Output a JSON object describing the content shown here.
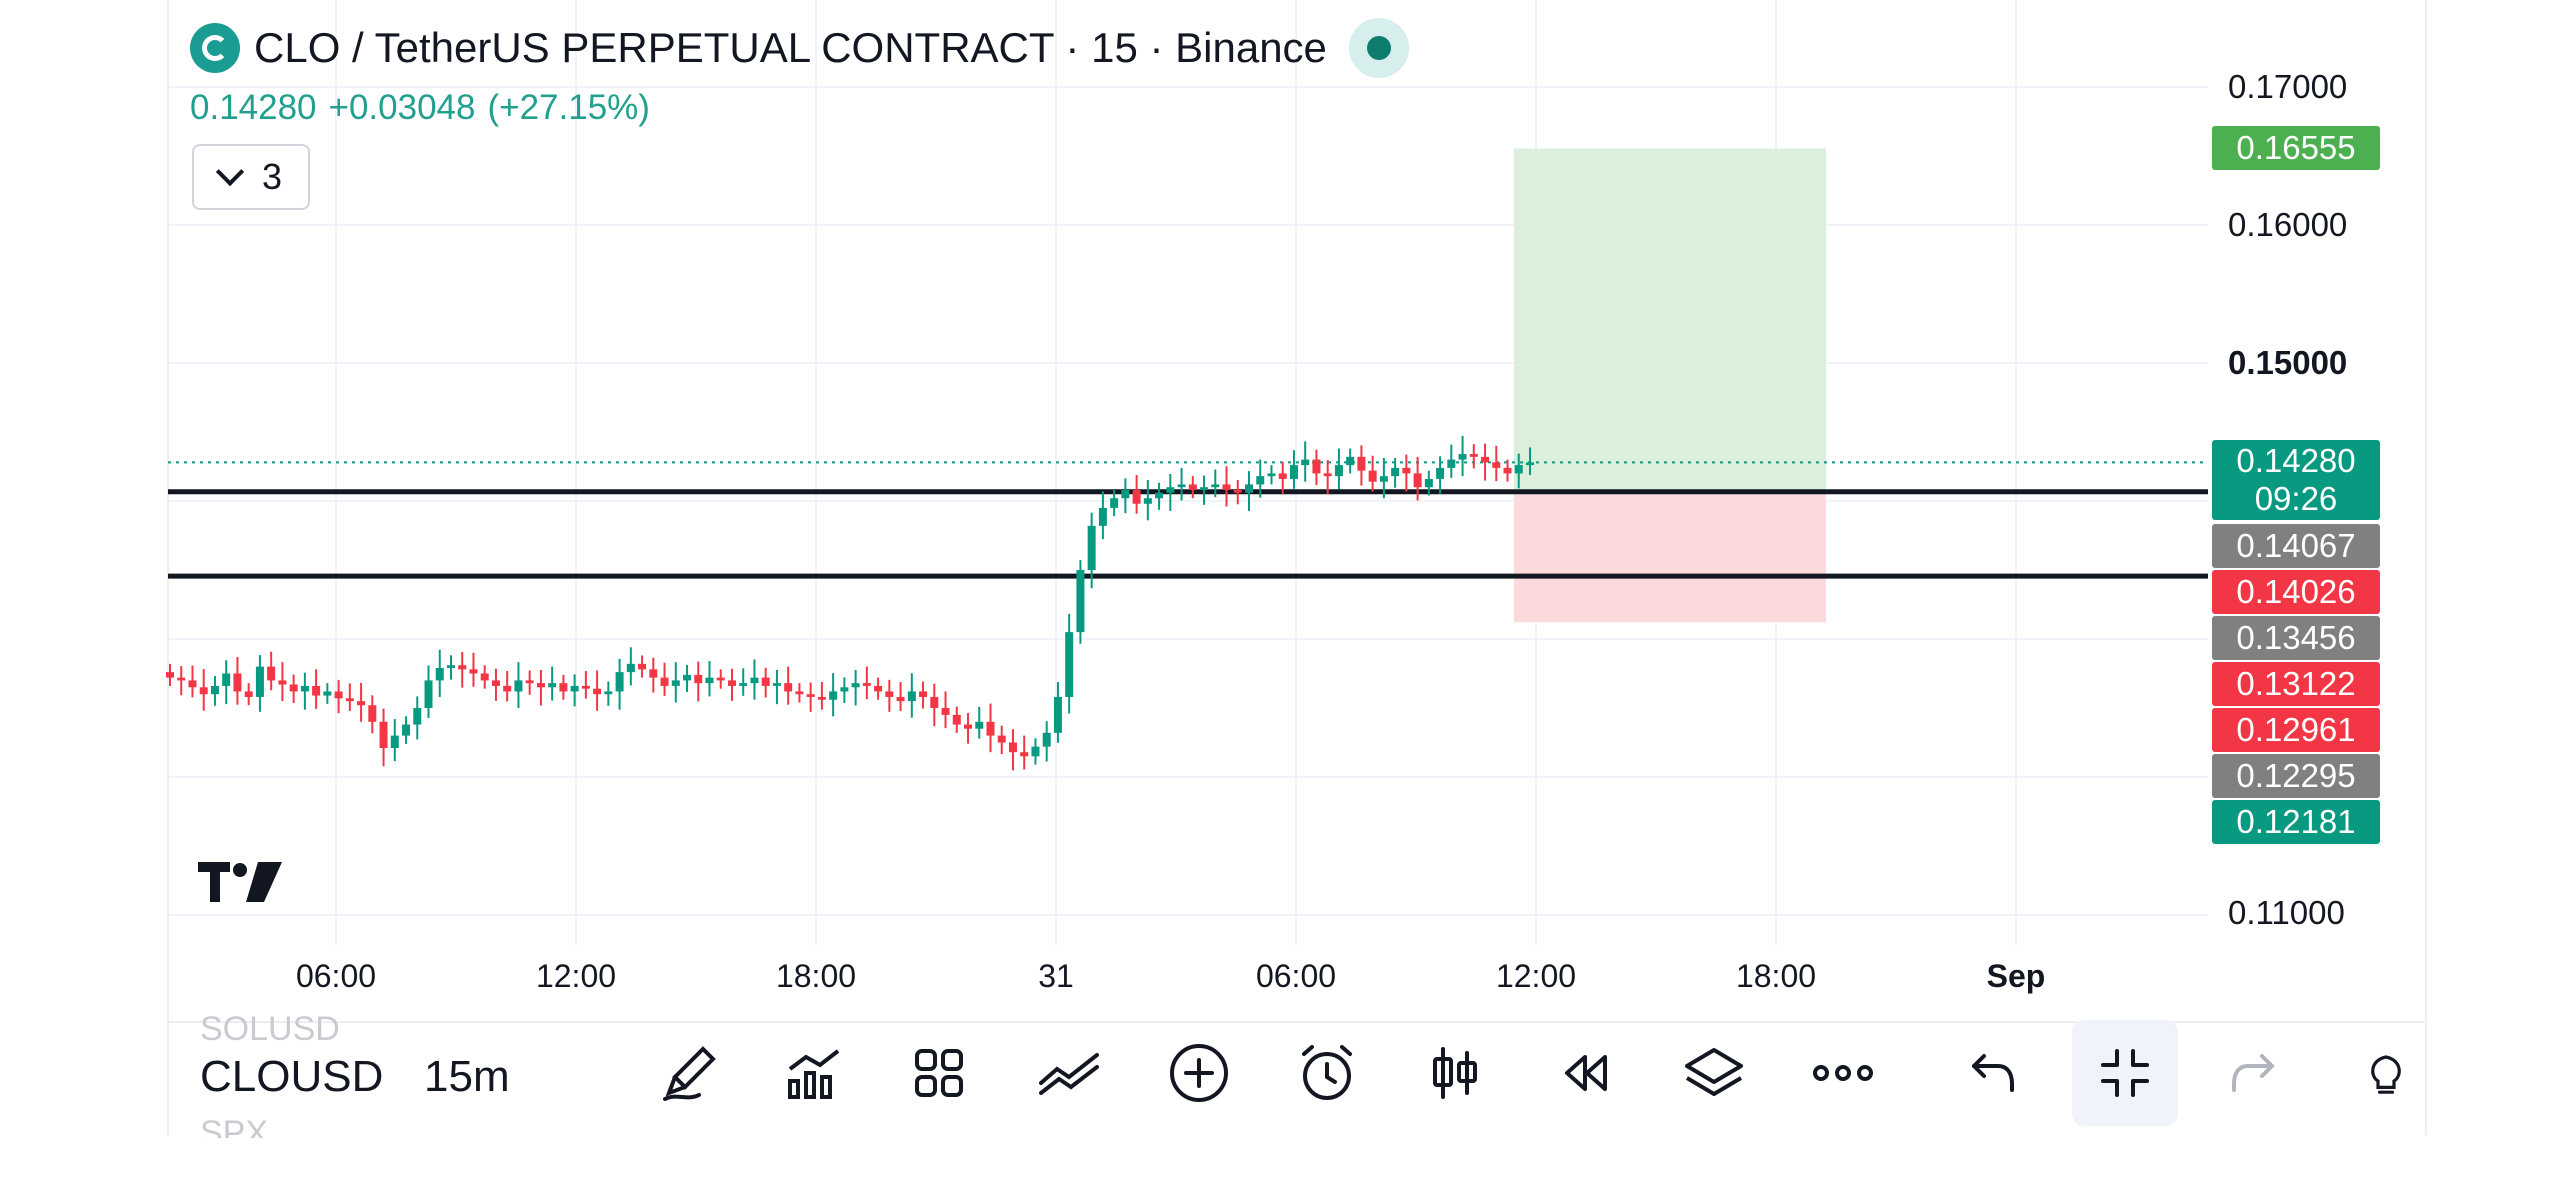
{
  "header": {
    "title": "CLO / TetherUS PERPETUAL CONTRACT · 15 · Binance"
  },
  "quote": {
    "last": "0.14280",
    "change": "+0.03048",
    "change_pct": "(+27.15%)"
  },
  "indicators_button": {
    "count": "3"
  },
  "price_axis": {
    "labels": [
      {
        "value": "0.17000",
        "bold": false
      },
      {
        "value": "0.16000",
        "bold": false
      },
      {
        "value": "0.15000",
        "bold": true
      },
      {
        "value": "0.11000",
        "bold": false
      }
    ],
    "tags": [
      {
        "value": "0.16555",
        "color": "#4caf50"
      },
      {
        "value": "0.14067",
        "color": "#808080"
      },
      {
        "value": "0.14026",
        "color": "#f23645"
      },
      {
        "value": "0.13456",
        "color": "#808080"
      },
      {
        "value": "0.13122",
        "color": "#f23645"
      },
      {
        "value": "0.12961",
        "color": "#f23645"
      },
      {
        "value": "0.12295",
        "color": "#808080"
      },
      {
        "value": "0.12181",
        "color": "#089981"
      }
    ],
    "current": {
      "value": "0.14280",
      "countdown": "09:26",
      "color": "#089981"
    }
  },
  "time_axis": [
    {
      "label": "06:00",
      "bold": false
    },
    {
      "label": "12:00",
      "bold": false
    },
    {
      "label": "18:00",
      "bold": false
    },
    {
      "label": "31",
      "bold": false
    },
    {
      "label": "06:00",
      "bold": false
    },
    {
      "label": "12:00",
      "bold": false
    },
    {
      "label": "18:00",
      "bold": false
    },
    {
      "label": "Sep",
      "bold": true
    }
  ],
  "toolbar": {
    "symbol": "CLOUSD",
    "symbol_prev": "SOLUSD",
    "symbol_next": "SPX",
    "interval": "15m",
    "icons": [
      "brush-icon",
      "indicators-icon",
      "templates-icon",
      "compare-icon",
      "add-icon",
      "alert-icon",
      "bar-style-icon",
      "replay-icon",
      "layers-icon",
      "more-icon",
      "undo-icon",
      "fullscreen-exit-icon",
      "redo-icon",
      "ideas-icon"
    ]
  },
  "colors": {
    "up": "#089981",
    "down": "#f23645",
    "profit_zone": "#dcefdc",
    "loss_zone": "#fbd9dc"
  },
  "chart_data": {
    "type": "candlestick",
    "title": "",
    "interval": "15m",
    "ylim": [
      0.1,
      0.175
    ],
    "horizontal_lines": [
      0.14067,
      0.13456
    ],
    "position": {
      "entry": 0.14067,
      "target": 0.16555,
      "stop": 0.13122
    },
    "current_price": 0.1428,
    "close_series": [
      0.1272,
      0.127,
      0.1265,
      0.126,
      0.1266,
      0.1275,
      0.1262,
      0.1258,
      0.128,
      0.127,
      0.1267,
      0.1262,
      0.1266,
      0.1259,
      0.1262,
      0.1257,
      0.1255,
      0.1252,
      0.124,
      0.1221,
      0.123,
      0.1238,
      0.125,
      0.127,
      0.1279,
      0.1281,
      0.1278,
      0.1275,
      0.127,
      0.1266,
      0.1262,
      0.127,
      0.1268,
      0.1265,
      0.1268,
      0.1262,
      0.1266,
      0.1264,
      0.126,
      0.1262,
      0.1276,
      0.1282,
      0.1278,
      0.1272,
      0.1266,
      0.127,
      0.1274,
      0.1268,
      0.1272,
      0.127,
      0.1266,
      0.1268,
      0.1272,
      0.1266,
      0.1268,
      0.1262,
      0.126,
      0.1258,
      0.1256,
      0.1262,
      0.1265,
      0.1268,
      0.1266,
      0.1262,
      0.1258,
      0.1255,
      0.1262,
      0.1258,
      0.125,
      0.1245,
      0.1238,
      0.1235,
      0.124,
      0.123,
      0.1225,
      0.1218,
      0.1215,
      0.1222,
      0.1232,
      0.1258,
      0.1305,
      0.135,
      0.1382,
      0.1395,
      0.1402,
      0.1408,
      0.1398,
      0.1402,
      0.1406,
      0.141,
      0.1412,
      0.1408,
      0.141,
      0.1412,
      0.1408,
      0.1406,
      0.1412,
      0.1418,
      0.142,
      0.1416,
      0.1426,
      0.143,
      0.142,
      0.1418,
      0.1426,
      0.1432,
      0.1422,
      0.1414,
      0.1418,
      0.1424,
      0.142,
      0.141,
      0.1416,
      0.1424,
      0.143,
      0.1434,
      0.1432,
      0.1428,
      0.1424,
      0.142,
      0.1426,
      0.1428
    ]
  }
}
